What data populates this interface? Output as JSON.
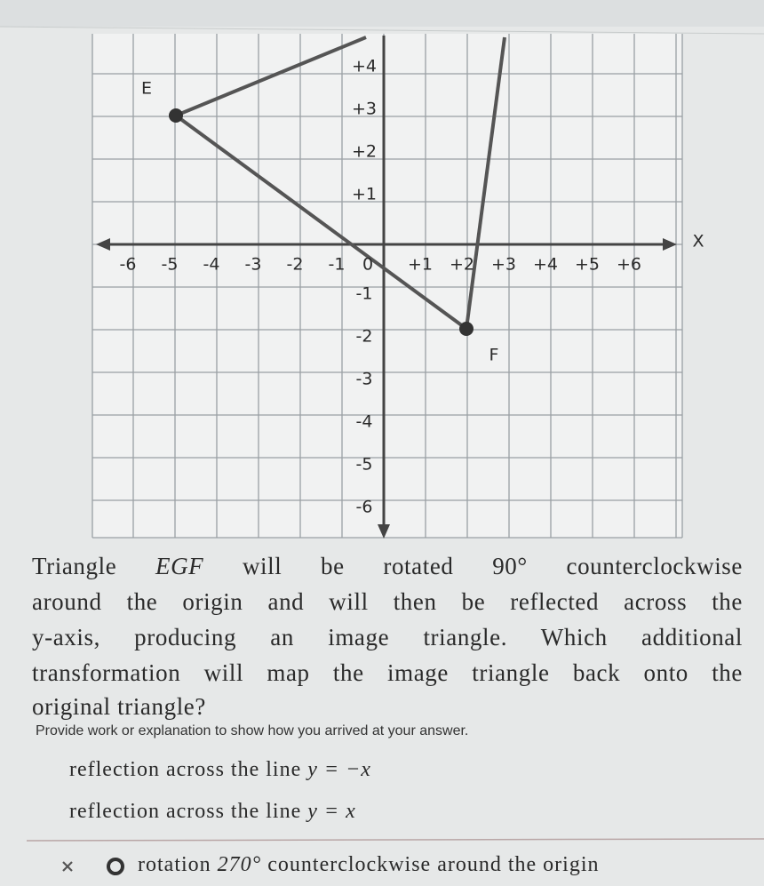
{
  "graph": {
    "x_axis_label": "X",
    "x_tick_labels": [
      "-6",
      "-5",
      "-4",
      "-3",
      "-2",
      "-1",
      "+1",
      "+2",
      "+3",
      "+4",
      "+5",
      "+6"
    ],
    "origin_label": "0",
    "y_tick_labels": [
      "+4",
      "+3",
      "+2",
      "+1",
      "-1",
      "-2",
      "-3",
      "-4",
      "-5",
      "-6"
    ],
    "point_labels": [
      "E",
      "F"
    ]
  },
  "question": {
    "lines": [
      [
        "Triangle ",
        "EGF",
        " will be rotated ",
        "90°",
        " counterclockwise"
      ],
      [
        "around the origin and will then be reflected across the"
      ],
      [
        "y-axis, producing an image triangle. Which additional"
      ],
      [
        "transformation will map the image triangle back onto the"
      ],
      [
        "original triangle?"
      ]
    ]
  },
  "instruction": "Provide work or explanation to show how you arrived at your answer.",
  "options": [
    [
      "reflection across the line ",
      "y = −x"
    ],
    [
      "reflection across the line ",
      "y = x"
    ],
    [
      "rotation ",
      "270°",
      " counterclockwise around the origin"
    ]
  ]
}
